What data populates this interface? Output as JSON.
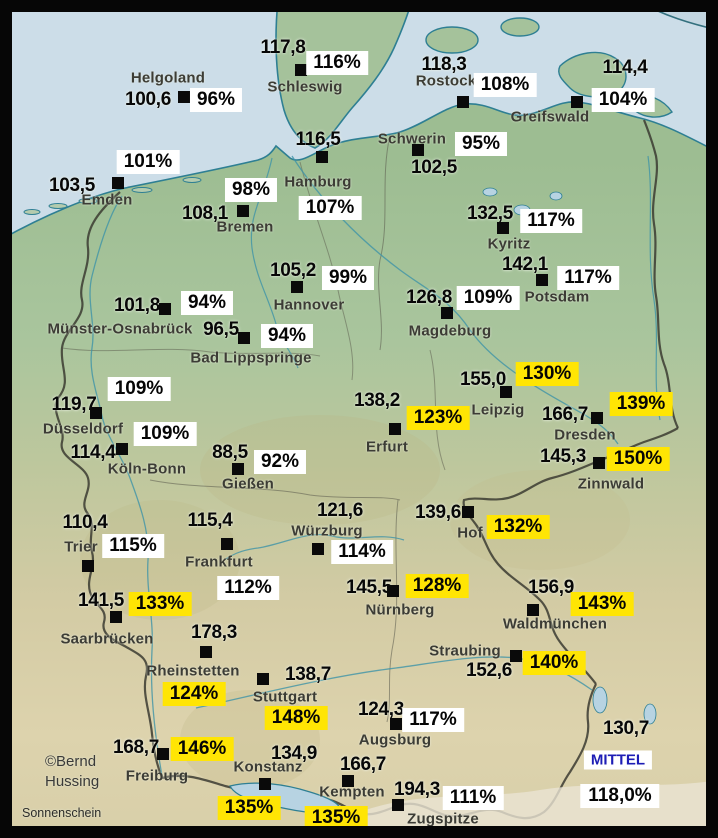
{
  "map": {
    "credit_line1": "©Bernd",
    "credit_line2": "Hussing",
    "footer_label": "Sonnenschein",
    "colors": {
      "sea": "#ccdde8",
      "land_north": "#a6c29b",
      "land_south": "#dbd0a8",
      "highlight_box": "#ffe504",
      "label_box": "#ffffff",
      "frame": "#060606",
      "mittel_text": "#1d1db5",
      "coast": "#2e7f93"
    }
  },
  "mittel": {
    "label": "MITTEL",
    "value": "130,7",
    "percent": "118,0%"
  },
  "stations": [
    {
      "slug": "helgoland",
      "name": "Helgoland",
      "value": "100,6",
      "percent": "96%",
      "highlight": false,
      "v": [
        148,
        100
      ],
      "m": [
        184,
        97
      ],
      "p": [
        216,
        100
      ],
      "n": [
        168,
        78
      ]
    },
    {
      "slug": "schleswig",
      "name": "Schleswig",
      "value": "117,8",
      "percent": "116%",
      "highlight": false,
      "v": [
        283,
        48
      ],
      "m": [
        301,
        70
      ],
      "p": [
        337,
        63
      ],
      "n": [
        305,
        87
      ]
    },
    {
      "slug": "rostock",
      "name": "Rostock",
      "value": "118,3",
      "percent": "108%",
      "highlight": false,
      "v": [
        444,
        65
      ],
      "m": [
        463,
        102
      ],
      "p": [
        505,
        85
      ],
      "n": [
        446,
        81
      ]
    },
    {
      "slug": "greifswald",
      "name": "Greifswald",
      "value": "114,4",
      "percent": "104%",
      "highlight": false,
      "v": [
        625,
        68
      ],
      "m": [
        577,
        102
      ],
      "p": [
        623,
        100
      ],
      "n": [
        550,
        117
      ]
    },
    {
      "slug": "emden",
      "name": "Emden",
      "value": "103,5",
      "percent": "101%",
      "highlight": false,
      "v": [
        72,
        186
      ],
      "m": [
        118,
        183
      ],
      "p": [
        148,
        162
      ],
      "n": [
        107,
        200
      ]
    },
    {
      "slug": "hamburg",
      "name": "Hamburg",
      "value": "116,5",
      "percent": "107%",
      "highlight": false,
      "v": [
        318,
        140
      ],
      "m": [
        322,
        157
      ],
      "p": [
        330,
        208
      ],
      "n": [
        318,
        182
      ]
    },
    {
      "slug": "schwerin",
      "name": "Schwerin",
      "value": "102,5",
      "percent": "95%",
      "highlight": false,
      "v": [
        434,
        168
      ],
      "m": [
        418,
        150
      ],
      "p": [
        481,
        144
      ],
      "n": [
        412,
        139
      ]
    },
    {
      "slug": "bremen",
      "name": "Bremen",
      "value": "108,1",
      "percent": "98%",
      "highlight": false,
      "v": [
        205,
        214
      ],
      "m": [
        243,
        211
      ],
      "p": [
        251,
        190
      ],
      "n": [
        245,
        227
      ]
    },
    {
      "slug": "kyritz",
      "name": "Kyritz",
      "value": "132,5",
      "percent": "117%",
      "highlight": false,
      "v": [
        490,
        214
      ],
      "m": [
        503,
        228
      ],
      "p": [
        551,
        221
      ],
      "n": [
        509,
        244
      ]
    },
    {
      "slug": "potsdam",
      "name": "Potsdam",
      "value": "142,1",
      "percent": "117%",
      "highlight": false,
      "v": [
        525,
        265
      ],
      "m": [
        542,
        280
      ],
      "p": [
        588,
        278
      ],
      "n": [
        557,
        297
      ]
    },
    {
      "slug": "hannover",
      "name": "Hannover",
      "value": "105,2",
      "percent": "99%",
      "highlight": false,
      "v": [
        293,
        271
      ],
      "m": [
        297,
        287
      ],
      "p": [
        348,
        278
      ],
      "n": [
        309,
        305
      ]
    },
    {
      "slug": "magdeburg",
      "name": "Magdeburg",
      "value": "126,8",
      "percent": "109%",
      "highlight": false,
      "v": [
        429,
        298
      ],
      "m": [
        447,
        313
      ],
      "p": [
        488,
        298
      ],
      "n": [
        450,
        331
      ]
    },
    {
      "slug": "muenster-osnabrueck",
      "name": "Münster-Osnabrück",
      "value": "101,8",
      "percent": "94%",
      "highlight": false,
      "v": [
        137,
        306
      ],
      "m": [
        165,
        309
      ],
      "p": [
        207,
        303
      ],
      "n": [
        120,
        329
      ]
    },
    {
      "slug": "bad-lippspringe",
      "name": "Bad Lippspringe",
      "value": "96,5",
      "percent": "94%",
      "highlight": false,
      "v": [
        221,
        330
      ],
      "m": [
        244,
        338
      ],
      "p": [
        287,
        336
      ],
      "n": [
        251,
        358
      ]
    },
    {
      "slug": "duesseldorf",
      "name": "Düsseldorf",
      "value": "119,7",
      "percent": "109%",
      "highlight": false,
      "v": [
        74,
        405
      ],
      "m": [
        96,
        413
      ],
      "p": [
        139,
        389
      ],
      "n": [
        83,
        429
      ]
    },
    {
      "slug": "koeln-bonn",
      "name": "Köln-Bonn",
      "value": "114,4",
      "percent": "109%",
      "highlight": false,
      "v": [
        93,
        453
      ],
      "m": [
        122,
        449
      ],
      "p": [
        165,
        434
      ],
      "n": [
        147,
        469
      ]
    },
    {
      "slug": "giessen",
      "name": "Gießen",
      "value": "88,5",
      "percent": "92%",
      "highlight": false,
      "v": [
        230,
        453
      ],
      "m": [
        238,
        469
      ],
      "p": [
        280,
        462
      ],
      "n": [
        248,
        484
      ]
    },
    {
      "slug": "erfurt",
      "name": "Erfurt",
      "value": "138,2",
      "percent": "123%",
      "highlight": true,
      "v": [
        377,
        401
      ],
      "m": [
        395,
        429
      ],
      "p": [
        438,
        418
      ],
      "n": [
        387,
        447
      ]
    },
    {
      "slug": "leipzig",
      "name": "Leipzig",
      "value": "155,0",
      "percent": "130%",
      "highlight": true,
      "v": [
        483,
        380
      ],
      "m": [
        506,
        392
      ],
      "p": [
        547,
        374
      ],
      "n": [
        498,
        410
      ]
    },
    {
      "slug": "dresden",
      "name": "Dresden",
      "value": "166,7",
      "percent": "139%",
      "highlight": true,
      "v": [
        565,
        415
      ],
      "m": [
        597,
        418
      ],
      "p": [
        641,
        404
      ],
      "n": [
        585,
        435
      ]
    },
    {
      "slug": "zinnwald",
      "name": "Zinnwald",
      "value": "145,3",
      "percent": "150%",
      "highlight": true,
      "v": [
        563,
        457
      ],
      "m": [
        599,
        463
      ],
      "p": [
        638,
        459
      ],
      "n": [
        611,
        484
      ]
    },
    {
      "slug": "trier",
      "name": "Trier",
      "value": "110,4",
      "percent": "115%",
      "highlight": false,
      "v": [
        85,
        523
      ],
      "m": [
        88,
        566
      ],
      "p": [
        133,
        546
      ],
      "n": [
        81,
        547
      ]
    },
    {
      "slug": "frankfurt",
      "name": "Frankfurt",
      "value": "115,4",
      "percent": "112%",
      "highlight": false,
      "v": [
        210,
        521
      ],
      "m": [
        227,
        544
      ],
      "p": [
        248,
        588
      ],
      "n": [
        219,
        562
      ]
    },
    {
      "slug": "wuerzburg",
      "name": "Würzburg",
      "value": "121,6",
      "percent": "114%",
      "highlight": false,
      "v": [
        340,
        511
      ],
      "m": [
        318,
        549
      ],
      "p": [
        362,
        552
      ],
      "n": [
        327,
        531
      ]
    },
    {
      "slug": "hof",
      "name": "Hof",
      "value": "139,6",
      "percent": "132%",
      "highlight": true,
      "v": [
        438,
        513
      ],
      "m": [
        468,
        512
      ],
      "p": [
        518,
        527
      ],
      "n": [
        470,
        533
      ]
    },
    {
      "slug": "saarbruecken",
      "name": "Saarbrücken",
      "value": "141,5",
      "percent": "133%",
      "highlight": true,
      "v": [
        101,
        601
      ],
      "m": [
        116,
        617
      ],
      "p": [
        160,
        604
      ],
      "n": [
        107,
        639
      ]
    },
    {
      "slug": "nuernberg",
      "name": "Nürnberg",
      "value": "145,5",
      "percent": "128%",
      "highlight": true,
      "v": [
        369,
        588
      ],
      "m": [
        393,
        591
      ],
      "p": [
        437,
        586
      ],
      "n": [
        400,
        610
      ]
    },
    {
      "slug": "waldmuenchen",
      "name": "Waldmünchen",
      "value": "156,9",
      "percent": "143%",
      "highlight": true,
      "v": [
        551,
        588
      ],
      "m": [
        533,
        610
      ],
      "p": [
        602,
        604
      ],
      "n": [
        555,
        624
      ]
    },
    {
      "slug": "rheinstetten",
      "name": "Rheinstetten",
      "value": "178,3",
      "percent": "124%",
      "highlight": true,
      "v": [
        214,
        633
      ],
      "m": [
        206,
        652
      ],
      "p": [
        194,
        694
      ],
      "n": [
        193,
        671
      ]
    },
    {
      "slug": "stuttgart",
      "name": "Stuttgart",
      "value": "138,7",
      "percent": "148%",
      "highlight": true,
      "v": [
        308,
        675
      ],
      "m": [
        263,
        679
      ],
      "p": [
        296,
        718
      ],
      "n": [
        285,
        697
      ]
    },
    {
      "slug": "straubing",
      "name": "Straubing",
      "value": "152,6",
      "percent": "140%",
      "highlight": true,
      "v": [
        489,
        671
      ],
      "m": [
        516,
        656
      ],
      "p": [
        554,
        663
      ],
      "n": [
        465,
        651
      ]
    },
    {
      "slug": "augsburg",
      "name": "Augsburg",
      "value": "124,3",
      "percent": "117%",
      "highlight": false,
      "v": [
        381,
        710
      ],
      "m": [
        396,
        724
      ],
      "p": [
        433,
        720
      ],
      "n": [
        395,
        740
      ]
    },
    {
      "slug": "freiburg",
      "name": "Freiburg",
      "value": "168,7",
      "percent": "146%",
      "highlight": true,
      "v": [
        136,
        748
      ],
      "m": [
        163,
        754
      ],
      "p": [
        202,
        749
      ],
      "n": [
        157,
        776
      ]
    },
    {
      "slug": "konstanz",
      "name": "Konstanz",
      "value": "134,9",
      "percent": "135%",
      "highlight": true,
      "v": [
        294,
        754
      ],
      "m": [
        265,
        784
      ],
      "p": [
        249,
        808
      ],
      "n": [
        268,
        767
      ]
    },
    {
      "slug": "kempten",
      "name": "Kempten",
      "value": "166,7",
      "percent": "135%",
      "highlight": true,
      "v": [
        363,
        765
      ],
      "m": [
        348,
        781
      ],
      "p": [
        336,
        818
      ],
      "n": [
        352,
        792
      ]
    },
    {
      "slug": "zugspitze",
      "name": "Zugspitze",
      "value": "194,3",
      "percent": "111%",
      "highlight": false,
      "v": [
        417,
        790
      ],
      "m": [
        398,
        805
      ],
      "p": [
        473,
        798
      ],
      "n": [
        443,
        819
      ]
    }
  ]
}
